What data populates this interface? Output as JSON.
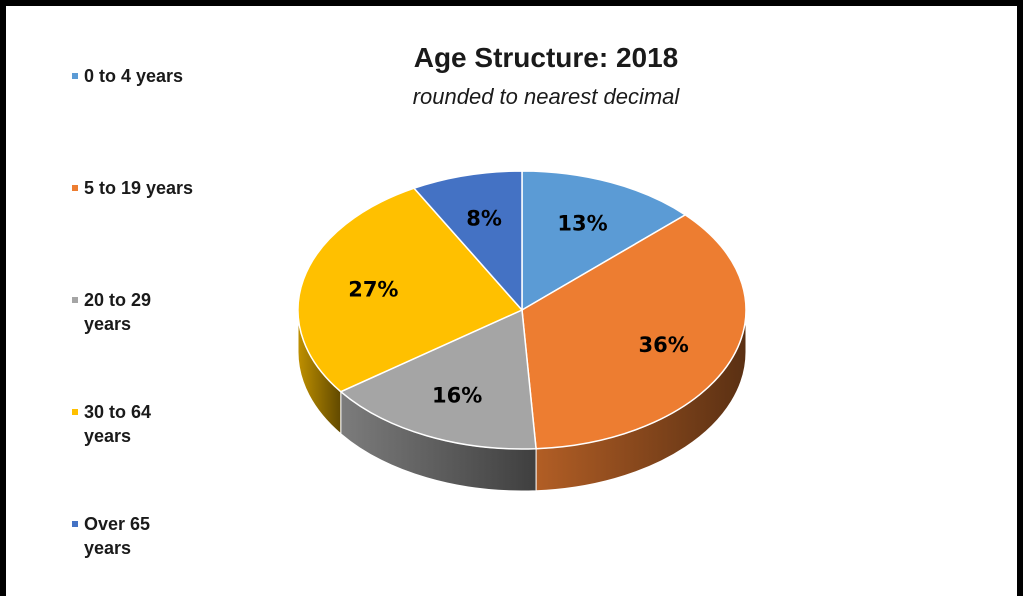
{
  "chart_data": {
    "type": "pie",
    "title": "Age Structure: 2018",
    "subtitle": "rounded to nearest decimal",
    "categories": [
      "0 to 4 years",
      "5 to 19 years",
      "20 to 29 years",
      "30 to 64 years",
      "Over 65 years"
    ],
    "values": [
      13,
      36,
      16,
      27,
      8
    ],
    "data_labels": [
      "13%",
      "36%",
      "16%",
      "27%",
      "8%"
    ],
    "colors": [
      "#5b9bd5",
      "#ed7d31",
      "#a5a5a5",
      "#ffc000",
      "#4472c4"
    ],
    "legend_position": "left",
    "style": "3d"
  }
}
